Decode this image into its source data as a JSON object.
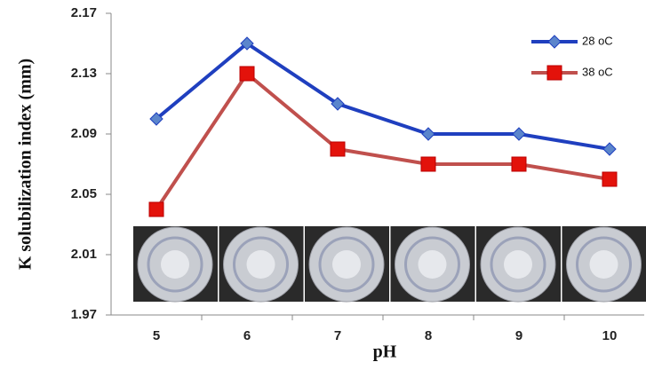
{
  "chart_data": {
    "type": "line",
    "x_label": "pH",
    "y_label": "K solubilization index (mm)",
    "categories": [
      "5",
      "6",
      "7",
      "8",
      "9",
      "10"
    ],
    "series": [
      {
        "name": "28 oC",
        "color": "#1f3fbf",
        "marker": "diamond",
        "marker_color": "#5b85cc",
        "values": [
          2.1,
          2.15,
          2.11,
          2.09,
          2.09,
          2.08
        ]
      },
      {
        "name": "38 oC",
        "color": "#c0504d",
        "marker": "square",
        "marker_color": "#e3120b",
        "values": [
          2.04,
          2.13,
          2.08,
          2.07,
          2.07,
          2.06
        ]
      }
    ],
    "ylim": [
      1.97,
      2.17
    ],
    "yticks": [
      1.97,
      2.01,
      2.05,
      2.09,
      2.13,
      2.17
    ],
    "grid": false,
    "legend": "top-right"
  }
}
